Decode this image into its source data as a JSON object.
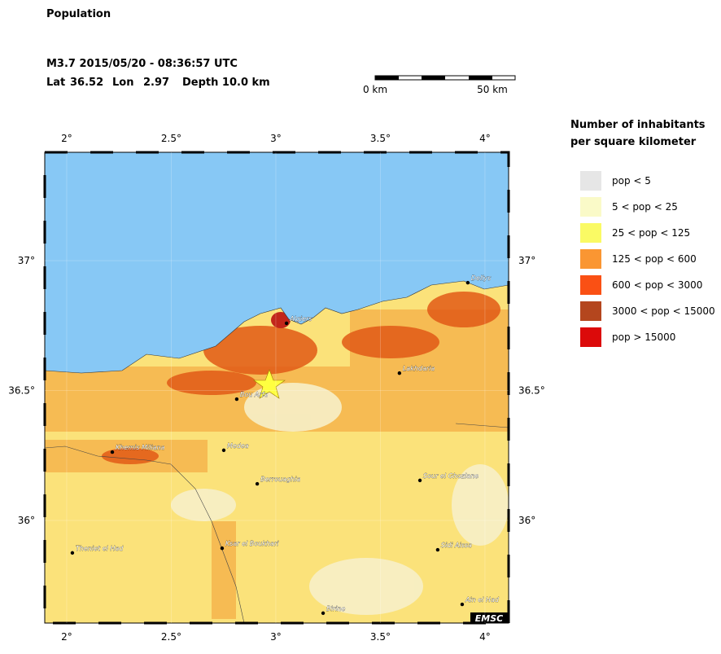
{
  "header": {
    "title": "Population",
    "event": "M3.7  2015/05/20 - 08:36:57 UTC",
    "lat_label": "Lat",
    "lat": 36.52,
    "lon_label": "Lon",
    "lon": 2.97,
    "depth": "Depth  10.0 km"
  },
  "scale_bar": {
    "start": "0 km",
    "end": "50 km"
  },
  "map": {
    "xlim": [
      1.895,
      4.113
    ],
    "ylim": [
      35.605,
      37.417
    ],
    "xticks": [
      {
        "value": 2,
        "label": "2°"
      },
      {
        "value": 2.5,
        "label": "2.5°"
      },
      {
        "value": 3,
        "label": "3°"
      },
      {
        "value": 3.5,
        "label": "3.5°"
      },
      {
        "value": 4,
        "label": "4°"
      }
    ],
    "yticks": [
      {
        "value": 36,
        "label": "36°"
      },
      {
        "value": 36.5,
        "label": "36.5°"
      },
      {
        "value": 37,
        "label": "37°"
      }
    ],
    "cities": [
      {
        "name": "Dellys",
        "lon": 3.918,
        "lat": 36.915
      },
      {
        "name": "Algiers",
        "lon": 3.051,
        "lat": 36.759
      },
      {
        "name": "Lakhdaria",
        "lon": 3.591,
        "lat": 36.567
      },
      {
        "name": "Bou Arfa",
        "lon": 2.813,
        "lat": 36.467
      },
      {
        "name": "Khemis Miliana",
        "lon": 2.218,
        "lat": 36.263
      },
      {
        "name": "Medea",
        "lon": 2.751,
        "lat": 36.27
      },
      {
        "name": "Berrouaghia",
        "lon": 2.911,
        "lat": 36.141
      },
      {
        "name": "Sour el Ghozlane",
        "lon": 3.689,
        "lat": 36.154
      },
      {
        "name": "Theniet el Had",
        "lon": 2.027,
        "lat": 35.875
      },
      {
        "name": "Ksar el Boukhari",
        "lon": 2.743,
        "lat": 35.893
      },
      {
        "name": "Sidi Aissa",
        "lon": 3.774,
        "lat": 35.887
      },
      {
        "name": "Birine",
        "lon": 3.226,
        "lat": 35.643
      },
      {
        "name": "Ain el Had",
        "lon": 3.891,
        "lat": 35.677
      }
    ],
    "logo": "EMSC"
  },
  "legend": {
    "title": [
      "Number of inhabitants",
      "per square kilometer"
    ],
    "items": [
      {
        "label": "pop < 5",
        "color": "#e6e6e6"
      },
      {
        "label": "5 < pop < 25",
        "color": "#fafac8"
      },
      {
        "label": "25 < pop < 125",
        "color": "#fafa64"
      },
      {
        "label": "125 < pop < 600",
        "color": "#fa9632"
      },
      {
        "label": "600 < pop < 3000",
        "color": "#fa5014"
      },
      {
        "label": "3000 < pop < 15000",
        "color": "#b4461e"
      },
      {
        "label": "pop > 15000",
        "color": "#dc0a0a"
      }
    ]
  }
}
